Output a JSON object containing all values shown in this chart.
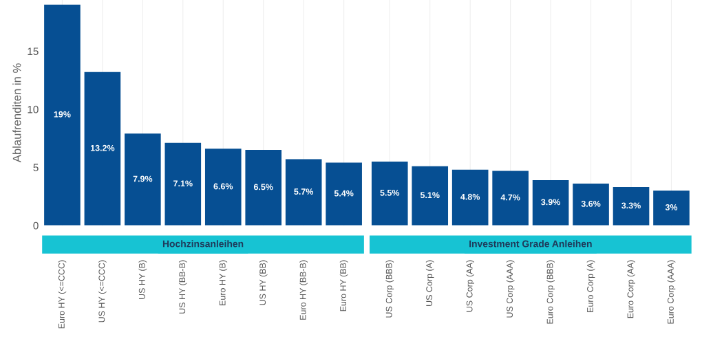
{
  "chart_data": [
    {
      "type": "bar",
      "title": "Hochzinsanleihen",
      "ylabel": "Ablaufrenditen in %",
      "categories": [
        "Euro HY (<=CCC)",
        "US HY (<=CCC)",
        "US HY (B)",
        "US HY (BB-B)",
        "Euro HY (B)",
        "US HY (BB)",
        "Euro HY (BB-B)",
        "Euro HY (BB)"
      ],
      "values": [
        19,
        13.2,
        7.9,
        7.1,
        6.6,
        6.5,
        5.7,
        5.4
      ],
      "value_labels": [
        "19%",
        "13.2%",
        "7.9%",
        "7.1%",
        "6.6%",
        "6.5%",
        "5.7%",
        "5.4%"
      ],
      "color": "#064f93",
      "ylim": [
        0,
        19.4
      ],
      "yticks": [
        0,
        5,
        10,
        15
      ],
      "grid": "x"
    },
    {
      "type": "bar",
      "title": "Investment Grade Anleihen",
      "categories": [
        "US Corp (BBB)",
        "US Corp (A)",
        "US Corp (AA)",
        "US Corp (AAA)",
        "Euro Corp (BBB)",
        "Euro Corp (A)",
        "Euro Corp (AA)",
        "Euro Corp (AAA)"
      ],
      "values": [
        5.5,
        5.1,
        4.8,
        4.7,
        3.9,
        3.6,
        3.3,
        3
      ],
      "value_labels": [
        "5.5%",
        "5.1%",
        "4.8%",
        "4.7%",
        "3.9%",
        "3.6%",
        "3.3%",
        "3%"
      ],
      "color": "#064f93",
      "ylim": [
        0,
        19.4
      ],
      "yticks": [
        0,
        5,
        10,
        15
      ],
      "tick_labels": "x",
      "grid": "x"
    }
  ]
}
